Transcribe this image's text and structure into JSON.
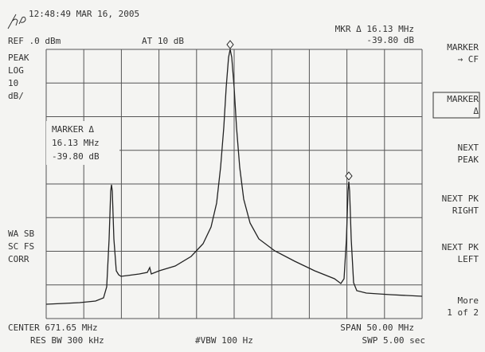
{
  "header": {
    "timestamp": "12:48:49 MAR 16, 2005",
    "reference": "REF .0 dBm",
    "attenuation": "AT 10 dB",
    "marker_readout": [
      "MKR Δ 16.13 MHz",
      "-39.80 dB"
    ]
  },
  "scale": [
    "PEAK",
    "LOG",
    "10",
    "dB/"
  ],
  "marker_box": [
    "MARKER Δ",
    "16.13 MHz",
    "-39.80 dB"
  ],
  "status": [
    "WA SB",
    "SC FS",
    "CORR"
  ],
  "footer": {
    "center": "CENTER 671.65 MHz",
    "res_bw": "RES BW 300 kHz",
    "vbw": "#VBW 100 Hz",
    "span": "SPAN 50.00 MHz",
    "sweep": "SWP 5.00 sec"
  },
  "softkeys": [
    [
      "MARKER",
      "→ CF"
    ],
    [
      "MARKER",
      "Δ"
    ],
    [
      "NEXT",
      "PEAK"
    ],
    [
      "NEXT PK",
      "RIGHT"
    ],
    [
      "NEXT PK",
      "LEFT"
    ],
    [
      "More",
      "1 of 2"
    ]
  ]
}
